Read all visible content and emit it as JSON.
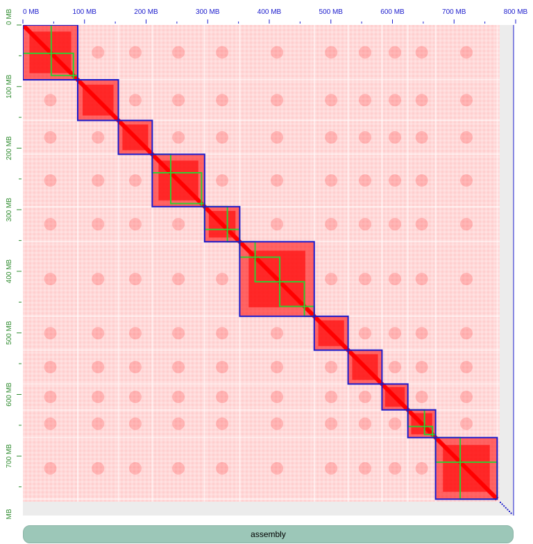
{
  "x_ticks": [
    {
      "label": "0 MB",
      "mb": 0
    },
    {
      "label": "100 MB",
      "mb": 100
    },
    {
      "label": "200 MB",
      "mb": 200
    },
    {
      "label": "300 MB",
      "mb": 300
    },
    {
      "label": "400 MB",
      "mb": 400
    },
    {
      "label": "500 MB",
      "mb": 500
    },
    {
      "label": "600 MB",
      "mb": 600
    },
    {
      "label": "700 MB",
      "mb": 700
    },
    {
      "label": "800 MB",
      "mb": 800
    }
  ],
  "y_ticks": [
    {
      "label": "0 MB",
      "mb": 0
    },
    {
      "label": "100 MB",
      "mb": 100
    },
    {
      "label": "200 MB",
      "mb": 200
    },
    {
      "label": "300 MB",
      "mb": 300
    },
    {
      "label": "400 MB",
      "mb": 400
    },
    {
      "label": "500 MB",
      "mb": 500
    },
    {
      "label": "600 MB",
      "mb": 600
    },
    {
      "label": "700 MB",
      "mb": 700
    }
  ],
  "y_axis_tail_label": "MB",
  "chromosomes_mb": [
    [
      0,
      89
    ],
    [
      89,
      155
    ],
    [
      155,
      210
    ],
    [
      210,
      295
    ],
    [
      295,
      352
    ],
    [
      352,
      473
    ],
    [
      473,
      528
    ],
    [
      528,
      583
    ],
    [
      583,
      625
    ],
    [
      625,
      670
    ],
    [
      670,
      770
    ]
  ],
  "contigs_mb": [
    [
      0,
      46
    ],
    [
      46,
      82
    ],
    [
      82,
      89
    ],
    [
      210,
      240
    ],
    [
      240,
      290
    ],
    [
      290,
      295
    ],
    [
      295,
      332
    ],
    [
      332,
      352
    ],
    [
      352,
      377
    ],
    [
      377,
      417
    ],
    [
      417,
      457
    ],
    [
      457,
      473
    ],
    [
      625,
      652
    ],
    [
      652,
      665
    ],
    [
      665,
      670
    ],
    [
      670,
      710
    ],
    [
      710,
      770
    ]
  ],
  "track_label": "assembly",
  "colors": {
    "heat": "#ff0000",
    "chromosome_border": "#1a1acc",
    "contig_border": "#33cc33",
    "tick_text": "#1a1acc",
    "y_tick_text": "#2e8b2e",
    "track_fill": "#9cc7b8"
  }
}
